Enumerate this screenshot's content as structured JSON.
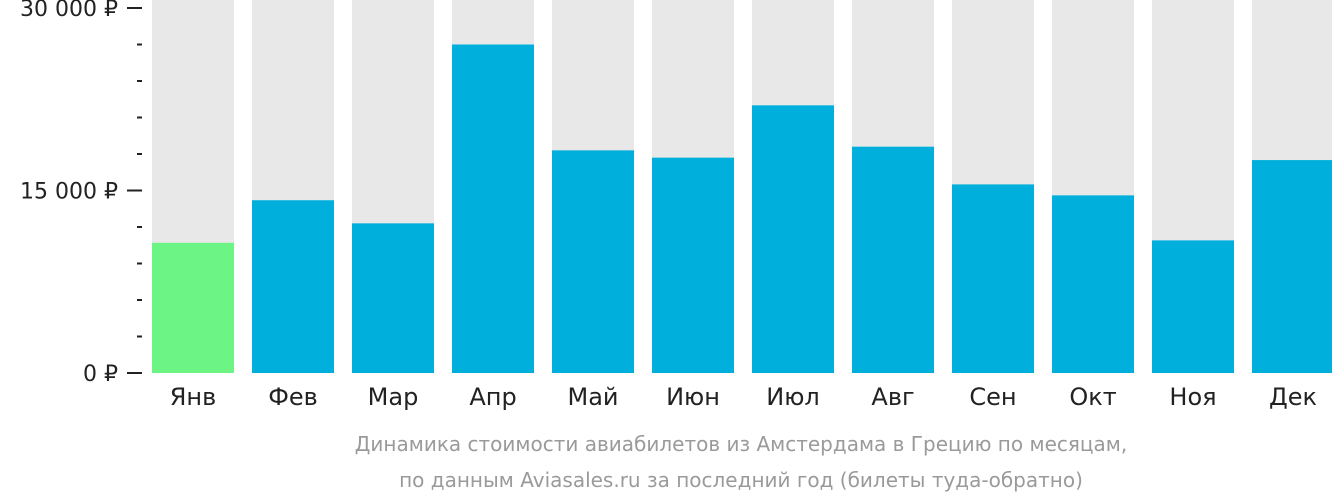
{
  "chart_data": {
    "type": "bar",
    "categories": [
      "Янв",
      "Фев",
      "Мар",
      "Апр",
      "Май",
      "Июн",
      "Июл",
      "Авг",
      "Сен",
      "Окт",
      "Ноя",
      "Дек"
    ],
    "values": [
      10700,
      14200,
      12300,
      27000,
      18300,
      17700,
      22000,
      18600,
      15500,
      14600,
      10900,
      17500
    ],
    "ylim": [
      0,
      30000
    ],
    "y_ticks": [
      {
        "value": 0,
        "label": "0 ₽"
      },
      {
        "value": 15000,
        "label": "15 000 ₽"
      },
      {
        "value": 30000,
        "label": "30 000 ₽"
      }
    ],
    "y_minor_step": 3000,
    "highlight_index": 0,
    "colors": {
      "bar": "#00afdc",
      "highlight": "#6cf585",
      "background_bar": "#e8e8e8",
      "tick": "#222222"
    },
    "caption_lines": [
      "Динамика стоимости авиабилетов из Амстердама в Грецию по месяцам,",
      "по данным Aviasales.ru за последний год (билеты туда-обратно)"
    ]
  }
}
